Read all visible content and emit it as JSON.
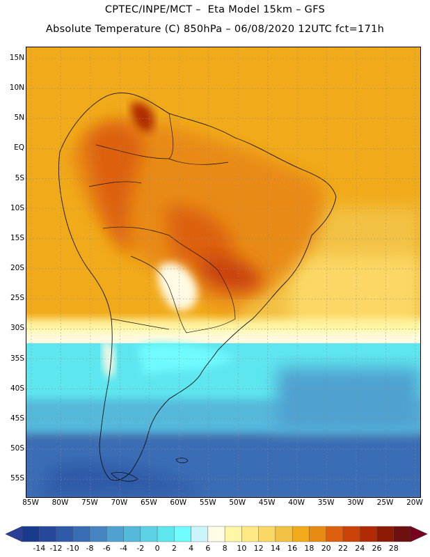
{
  "header": {
    "line1": "CPTEC/INPE/MCT –  Eta Model 15km – GFS",
    "line2": "Absolute Temperature (C) 850hPa – 06/08/2020 12UTC fct=171h"
  },
  "map": {
    "region": "South America",
    "lat_labels": [
      "15N",
      "10N",
      "5N",
      "EQ",
      "5S",
      "10S",
      "15S",
      "20S",
      "25S",
      "30S",
      "35S",
      "40S",
      "45S",
      "50S",
      "55S"
    ],
    "lon_labels": [
      "85W",
      "80W",
      "75W",
      "70W",
      "65W",
      "60W",
      "55W",
      "50W",
      "45W",
      "40W",
      "35W",
      "30W",
      "25W",
      "20W"
    ]
  },
  "colorbar": {
    "labels": [
      "-14",
      "-12",
      "-10",
      "-8",
      "-6",
      "-4",
      "-2",
      "0",
      "2",
      "4",
      "6",
      "8",
      "10",
      "12",
      "14",
      "16",
      "18",
      "20",
      "22",
      "24",
      "26",
      "28"
    ],
    "colors": [
      "#1a3a8c",
      "#27489a",
      "#2f5aa8",
      "#3a6db6",
      "#4685c2",
      "#4fa1d0",
      "#55b9dc",
      "#5dd2e6",
      "#5ee6ef",
      "#6ffbff",
      "#ccf5fb",
      "#fffbe4",
      "#fff6a6",
      "#ffe985",
      "#fbd865",
      "#f3c245",
      "#f1ab1a",
      "#e98a14",
      "#dd600e",
      "#ca4208",
      "#b02a06",
      "#8c1a05",
      "#6d1010"
    ],
    "under_color": "#2a3f9a",
    "over_color": "#7a0020"
  }
}
